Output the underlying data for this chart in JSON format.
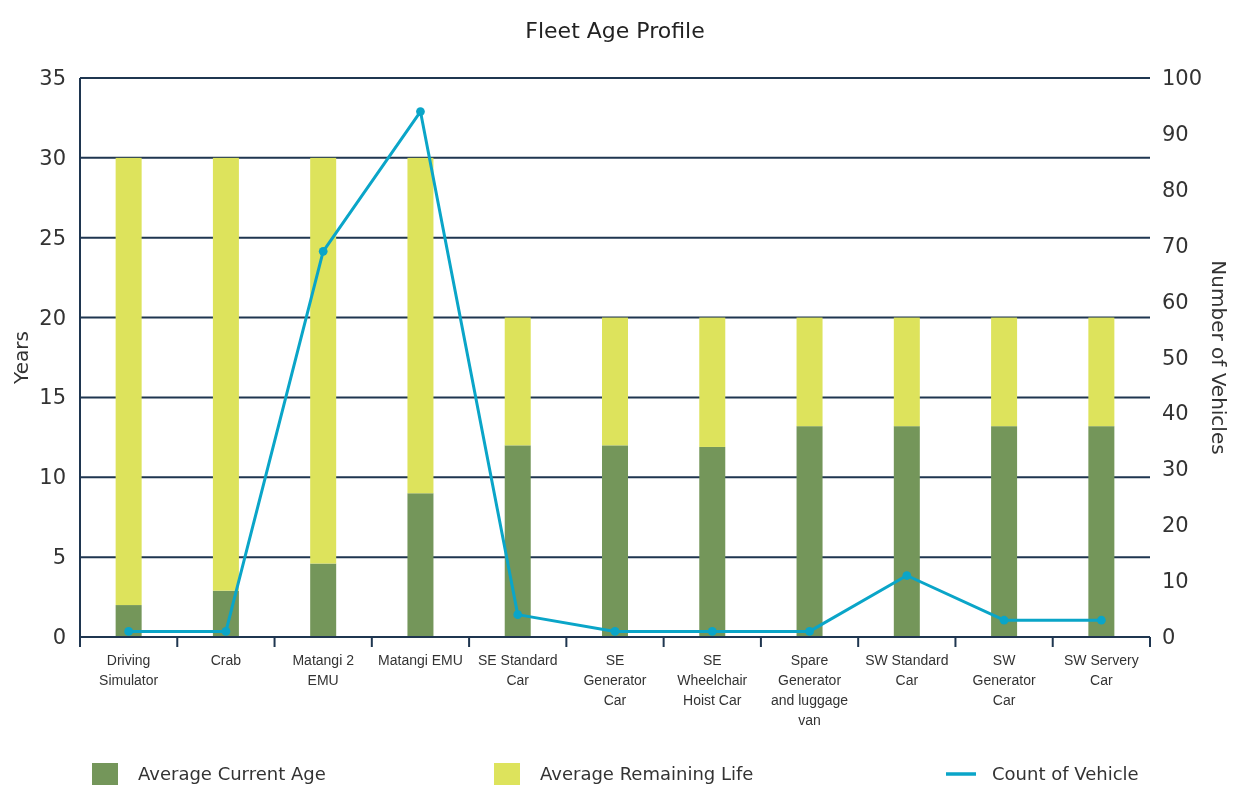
{
  "chart_data": {
    "type": "bar",
    "title": "Fleet Age Profile",
    "ylabel": "Years",
    "y2label": "Number of Vehicles",
    "categories": [
      "Driving Simulator",
      "Crab",
      "Matangi 2 EMU",
      "Matangi EMU",
      "SE Standard Car",
      "SE Generator Car",
      "SE Wheelchair Hoist Car",
      "Spare Generator and luggage van",
      "SW Standard Car",
      "SW Generator Car",
      "SW Servery Car"
    ],
    "stacked": true,
    "series": [
      {
        "name": "Average Current Age",
        "color": "#74965a",
        "values": [
          2,
          2.9,
          4.6,
          9,
          12,
          12,
          11.9,
          13.2,
          13.2,
          13.2,
          13.2
        ]
      },
      {
        "name": "Average Remaining Life",
        "color": "#dde35c",
        "values": [
          28,
          27.1,
          25.4,
          21,
          8,
          8,
          8.1,
          6.8,
          6.8,
          6.8,
          6.8
        ]
      },
      {
        "name": "Count of Vehicle",
        "type": "line",
        "axis": "y2",
        "color": "#0aa5c8",
        "marker": "circle",
        "values": [
          1,
          1,
          69,
          94,
          4,
          1,
          1,
          1,
          11,
          3,
          3
        ]
      }
    ],
    "ylim": [
      0,
      35
    ],
    "yticks": [
      0,
      5,
      10,
      15,
      20,
      25,
      30,
      35
    ],
    "y2lim": [
      0,
      100
    ],
    "y2ticks": [
      0,
      10,
      20,
      30,
      40,
      50,
      60,
      70,
      80,
      90,
      100
    ],
    "grid": "y",
    "legend": "bottom"
  }
}
